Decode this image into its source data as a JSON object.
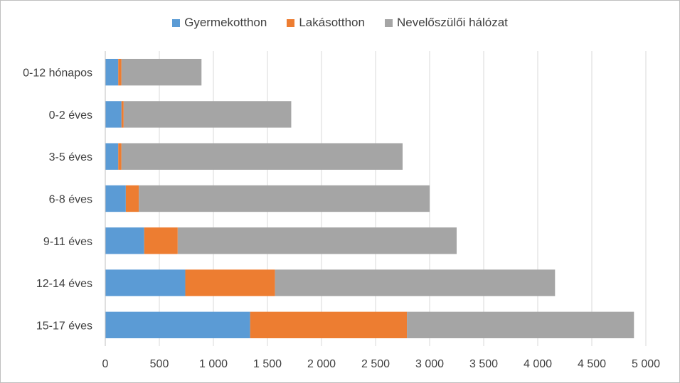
{
  "chart_data": {
    "type": "bar",
    "orientation": "horizontal",
    "stacked": true,
    "categories": [
      "0-12 hónapos",
      "0-2 éves",
      "3-5 éves",
      "6-8 éves",
      "9-11 éves",
      "12-14 éves",
      "15-17 éves"
    ],
    "series": [
      {
        "name": "Gyermekotthon",
        "color": "#5b9bd5",
        "values": [
          120,
          150,
          120,
          190,
          360,
          740,
          1340
        ]
      },
      {
        "name": "Lakásotthon",
        "color": "#ed7d31",
        "values": [
          30,
          20,
          30,
          120,
          310,
          830,
          1450
        ]
      },
      {
        "name": "Nevelőszülői hálózat",
        "color": "#a5a5a5",
        "values": [
          740,
          1550,
          2600,
          2690,
          2580,
          2590,
          2100
        ]
      }
    ],
    "x_ticks": [
      "0",
      "500",
      "1 000",
      "1 500",
      "2 000",
      "2 500",
      "3 000",
      "3 500",
      "4 000",
      "4 500",
      "5 000"
    ],
    "xlim": [
      0,
      5000
    ],
    "grid": true,
    "legend_position": "top",
    "title": "",
    "xlabel": "",
    "ylabel": ""
  }
}
